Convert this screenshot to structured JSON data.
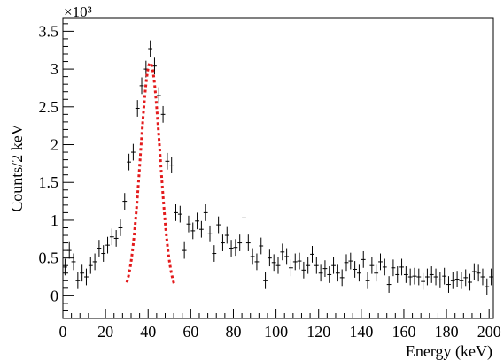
{
  "chart_data": {
    "type": "scatter",
    "title": "",
    "xlabel": "Energy (keV)",
    "ylabel": "Counts/2 keV",
    "y_multiplier": "×10³",
    "xlim": [
      0,
      202
    ],
    "ylim": [
      -300,
      3680
    ],
    "x_ticks": [
      0,
      20,
      40,
      60,
      80,
      100,
      120,
      140,
      160,
      180,
      200
    ],
    "x_tick_labels": [
      "0",
      "20",
      "40",
      "60",
      "80",
      "100",
      "120",
      "140",
      "160",
      "180",
      "200"
    ],
    "y_ticks": [
      0,
      500,
      1000,
      1500,
      2000,
      2500,
      3000,
      3500
    ],
    "y_tick_labels": [
      "0",
      "0.5",
      "1",
      "1.5",
      "2",
      "2.5",
      "3",
      "3.5"
    ],
    "grid": false,
    "legend": "none",
    "colors": {
      "data": "#000000",
      "fit": "#e31a1c"
    },
    "series": [
      {
        "kind": "data-with-errors",
        "bin_width": 2,
        "x": [
          1,
          3,
          5,
          7,
          9,
          11,
          13,
          15,
          17,
          19,
          21,
          23,
          25,
          27,
          29,
          31,
          33,
          35,
          37,
          39,
          41,
          43,
          45,
          47,
          49,
          51,
          53,
          55,
          57,
          59,
          61,
          63,
          65,
          67,
          69,
          71,
          73,
          75,
          77,
          79,
          81,
          83,
          85,
          87,
          89,
          91,
          93,
          95,
          97,
          99,
          101,
          103,
          105,
          107,
          109,
          111,
          113,
          115,
          117,
          119,
          121,
          123,
          125,
          127,
          129,
          131,
          133,
          135,
          137,
          139,
          141,
          143,
          145,
          147,
          149,
          151,
          153,
          155,
          157,
          159,
          161,
          163,
          165,
          167,
          169,
          171,
          173,
          175,
          177,
          179,
          181,
          183,
          185,
          187,
          189,
          191,
          193,
          195,
          197,
          199,
          201
        ],
        "y": [
          380,
          600,
          450,
          200,
          300,
          250,
          400,
          450,
          630,
          560,
          670,
          780,
          760,
          900,
          1250,
          1770,
          1900,
          2480,
          2780,
          3000,
          3270,
          3040,
          2650,
          2400,
          1780,
          1730,
          1100,
          1080,
          600,
          950,
          860,
          990,
          880,
          1100,
          820,
          560,
          940,
          700,
          800,
          630,
          640,
          700,
          1030,
          700,
          520,
          450,
          660,
          200,
          500,
          440,
          400,
          580,
          520,
          370,
          450,
          460,
          340,
          400,
          550,
          400,
          300,
          360,
          280,
          400,
          300,
          240,
          440,
          460,
          350,
          300,
          480,
          200,
          400,
          300,
          450,
          380,
          150,
          370,
          280,
          380,
          280,
          250,
          260,
          250,
          190,
          250,
          280,
          250,
          210,
          260,
          150,
          200,
          220,
          200,
          240,
          180,
          320,
          300,
          250,
          120,
          250
        ],
        "yerr": 110
      },
      {
        "kind": "fit",
        "shape": "gaussian",
        "amplitude": 3080,
        "mean": 41,
        "sigma": 4.6,
        "x_range": [
          30,
          52.5
        ]
      }
    ]
  }
}
